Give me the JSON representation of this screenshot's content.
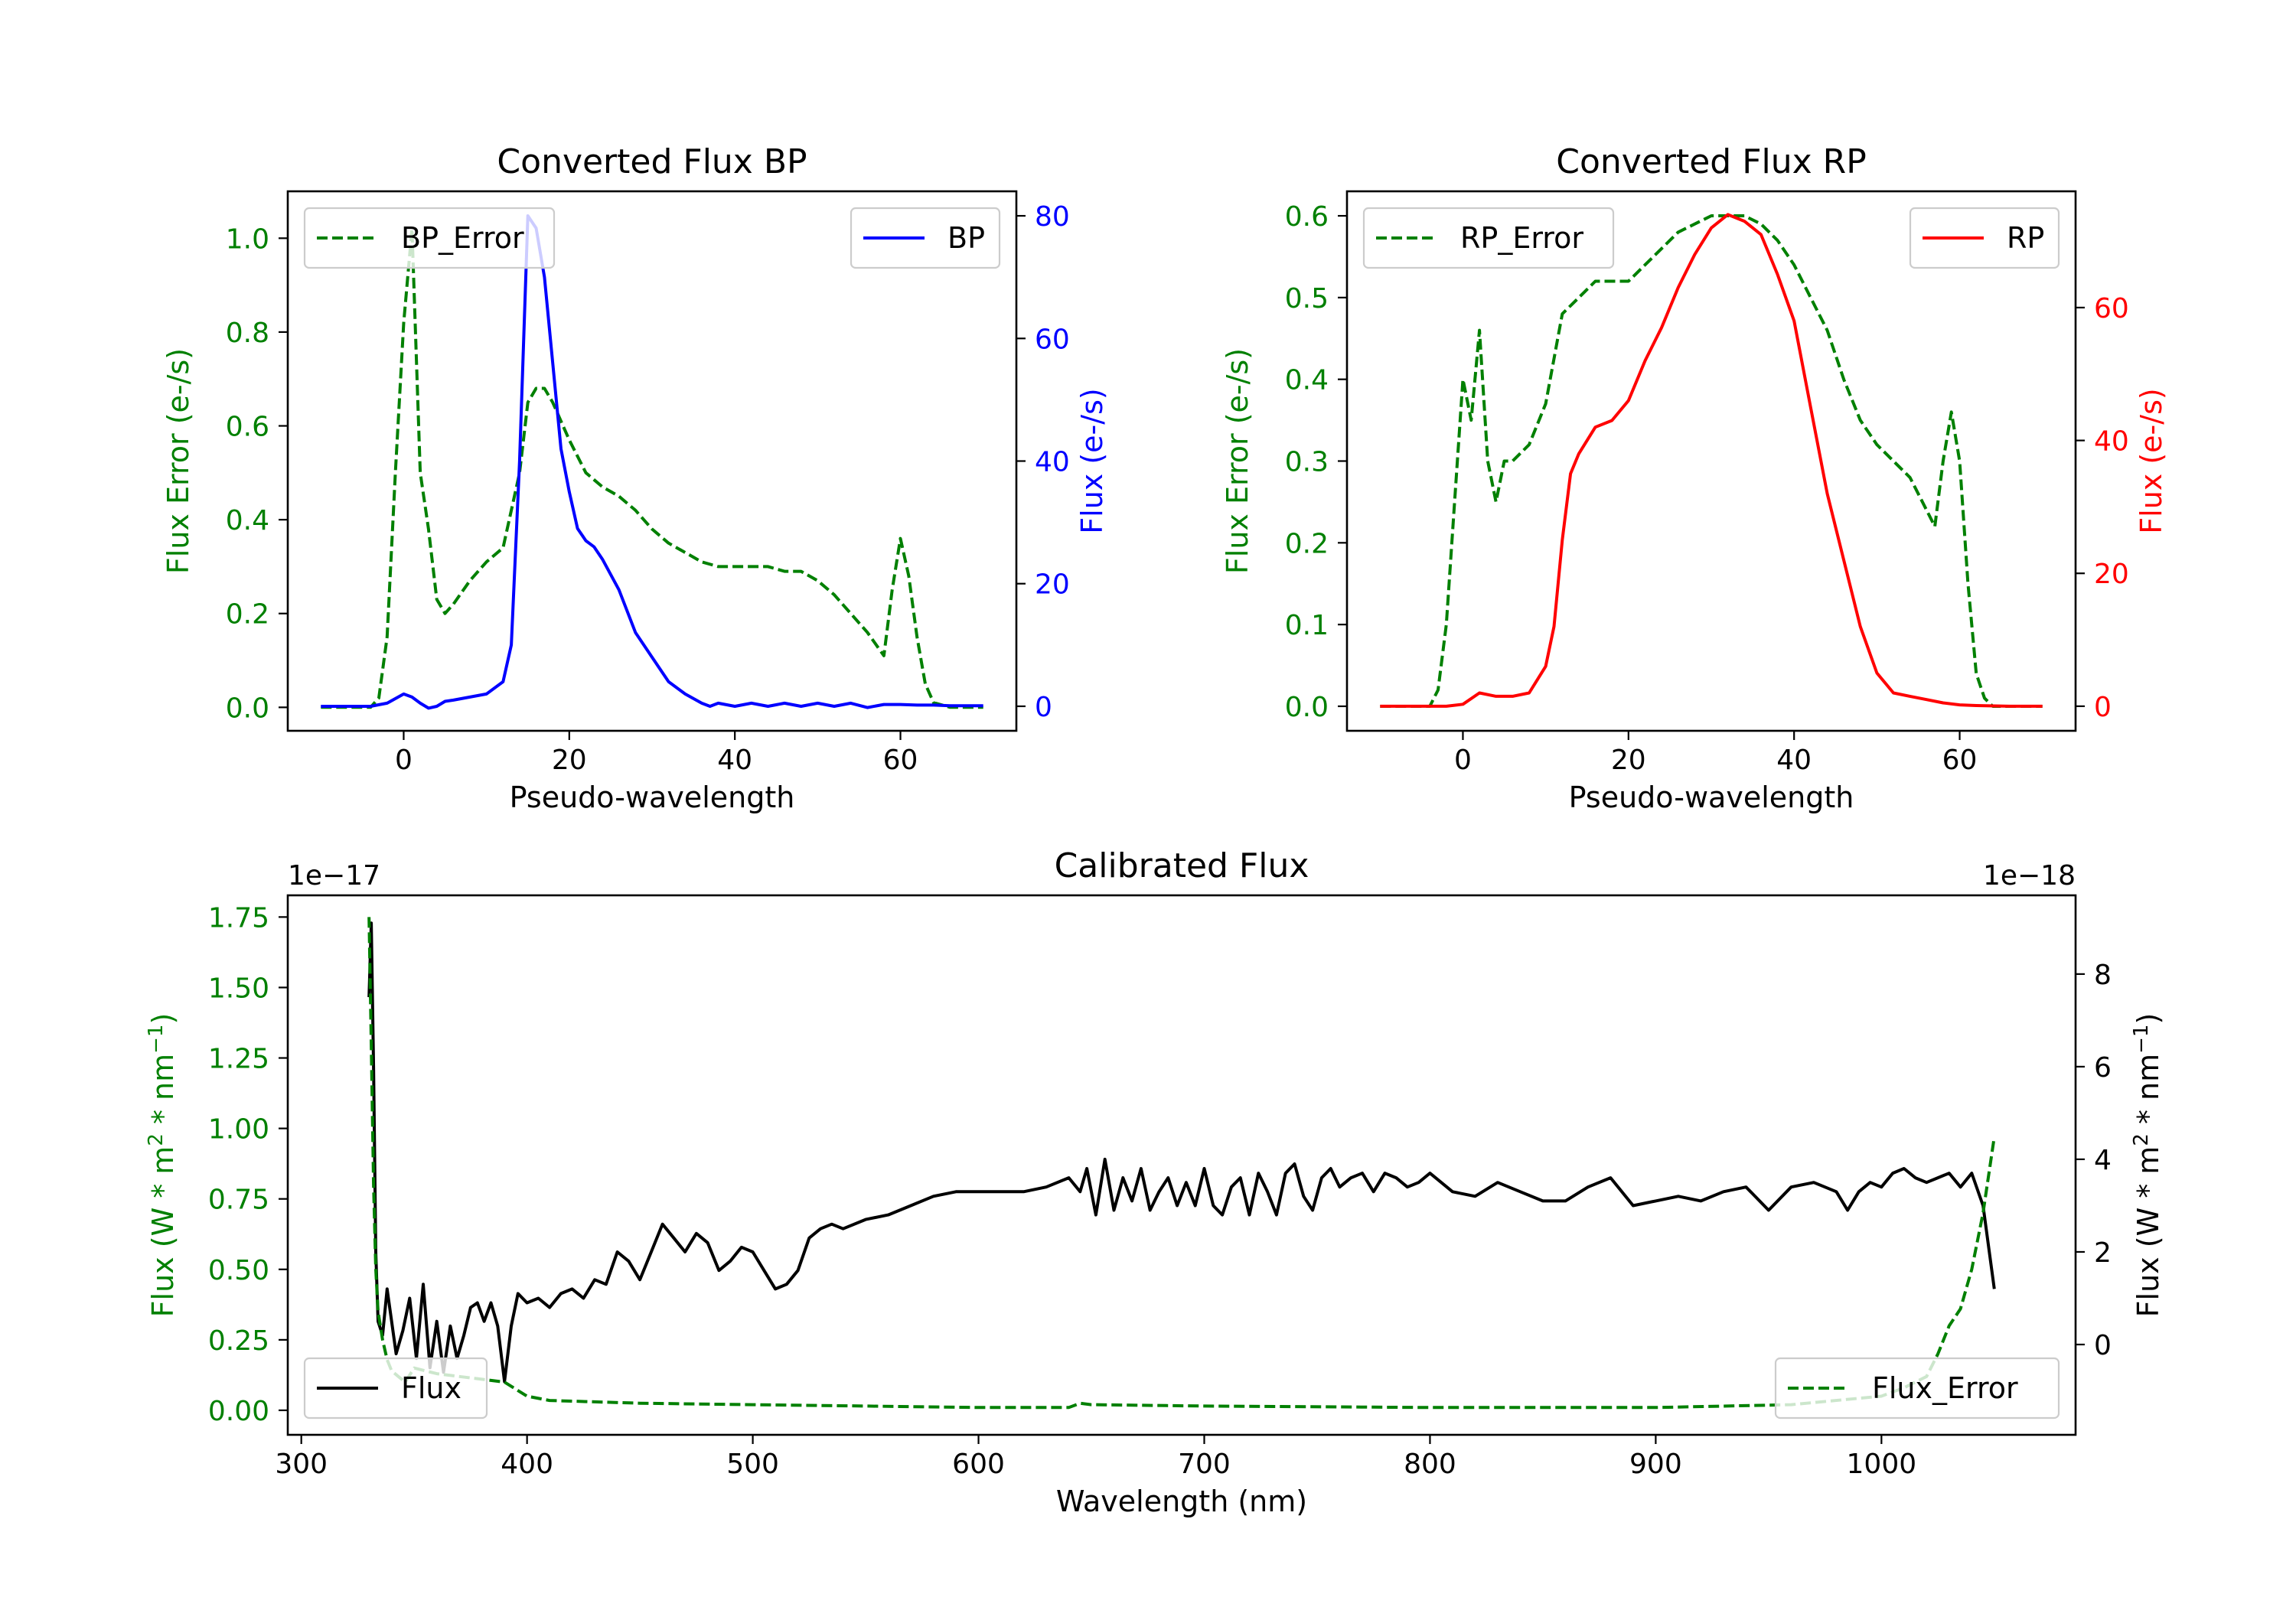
{
  "colors": {
    "green": "#008000",
    "blue": "#0000ff",
    "red": "#ff0000",
    "black": "#000000"
  },
  "chart_data": [
    {
      "type": "line",
      "title": "Converted Flux BP",
      "xlabel": "Pseudo-wavelength",
      "ylabel_left": "Flux Error (e-/s)",
      "ylabel_right": "Flux (e-/s)",
      "xlim": [
        -14,
        74
      ],
      "ylim_left": [
        -0.05,
        1.1
      ],
      "ylim_right": [
        -4.0,
        84.0
      ],
      "xticks": [
        0,
        20,
        40,
        60
      ],
      "yticks_left": [
        0.0,
        0.2,
        0.4,
        0.6,
        0.8,
        1.0
      ],
      "yticks_right": [
        0,
        20,
        40,
        60,
        80
      ],
      "left_tick_color": "#008000",
      "right_tick_color": "#0000ff",
      "series": [
        {
          "name": "BP_Error",
          "axis": "left",
          "style": "dashed",
          "color": "#008000",
          "legend": "top-left",
          "x": [
            -10,
            -4,
            -3,
            -2,
            -1,
            0,
            1,
            2,
            3,
            4,
            5,
            6,
            8,
            10,
            12,
            14,
            15,
            16,
            17,
            18,
            20,
            22,
            24,
            26,
            28,
            30,
            32,
            34,
            36,
            38,
            40,
            42,
            44,
            46,
            48,
            50,
            52,
            54,
            56,
            58,
            59,
            60,
            61,
            62,
            63,
            64,
            66,
            70
          ],
          "y": [
            0.0,
            0.0,
            0.02,
            0.15,
            0.5,
            0.82,
            1.02,
            0.5,
            0.38,
            0.23,
            0.2,
            0.22,
            0.27,
            0.31,
            0.34,
            0.5,
            0.65,
            0.68,
            0.68,
            0.65,
            0.57,
            0.5,
            0.47,
            0.45,
            0.42,
            0.38,
            0.35,
            0.33,
            0.31,
            0.3,
            0.3,
            0.3,
            0.3,
            0.29,
            0.29,
            0.27,
            0.24,
            0.2,
            0.16,
            0.11,
            0.25,
            0.36,
            0.28,
            0.15,
            0.05,
            0.01,
            0.0,
            0.0
          ]
        },
        {
          "name": "BP",
          "axis": "right",
          "style": "solid",
          "color": "#0000ff",
          "legend": "top-right",
          "x": [
            -10,
            -4,
            -2,
            0,
            1,
            2,
            3,
            4,
            5,
            6,
            8,
            10,
            12,
            13,
            14,
            15,
            16,
            17,
            18,
            19,
            20,
            21,
            22,
            23,
            24,
            26,
            28,
            30,
            32,
            34,
            36,
            37,
            38,
            40,
            42,
            44,
            46,
            48,
            50,
            52,
            54,
            56,
            58,
            60,
            62,
            64,
            66,
            70
          ],
          "y": [
            0,
            0,
            0.5,
            2,
            1.5,
            0.5,
            -0.3,
            0,
            0.8,
            1,
            1.5,
            2,
            4,
            10,
            40,
            80,
            78,
            70,
            56,
            42,
            35,
            29,
            27,
            26,
            24,
            19,
            12,
            8,
            4,
            2,
            0.5,
            0,
            0.5,
            0,
            0.5,
            0,
            0.5,
            0,
            0.5,
            0,
            0.5,
            -0.2,
            0.3,
            0.3,
            0.2,
            0.2,
            0.1,
            0.1
          ]
        }
      ]
    },
    {
      "type": "line",
      "title": "Converted Flux RP",
      "xlabel": "Pseudo-wavelength",
      "ylabel_left": "Flux Error (e-/s)",
      "ylabel_right": "Flux (e-/s)",
      "xlim": [
        -14,
        74
      ],
      "ylim_left": [
        -0.03,
        0.63
      ],
      "ylim_right": [
        -3.7,
        77.5
      ],
      "xticks": [
        0,
        20,
        40,
        60
      ],
      "yticks_left": [
        0.0,
        0.1,
        0.2,
        0.3,
        0.4,
        0.5,
        0.6
      ],
      "yticks_right": [
        0,
        20,
        40,
        60
      ],
      "left_tick_color": "#008000",
      "right_tick_color": "#ff0000",
      "series": [
        {
          "name": "RP_Error",
          "axis": "left",
          "style": "dashed",
          "color": "#008000",
          "legend": "top-left",
          "x": [
            -10,
            -4,
            -3,
            -2,
            -1,
            0,
            1,
            2,
            3,
            4,
            5,
            6,
            8,
            10,
            12,
            14,
            16,
            18,
            20,
            22,
            24,
            26,
            28,
            30,
            32,
            34,
            36,
            38,
            40,
            42,
            44,
            46,
            48,
            50,
            52,
            54,
            56,
            57,
            58,
            59,
            60,
            61,
            62,
            63,
            64,
            66,
            70
          ],
          "y": [
            0.0,
            0.0,
            0.02,
            0.1,
            0.25,
            0.4,
            0.35,
            0.46,
            0.3,
            0.25,
            0.3,
            0.3,
            0.32,
            0.37,
            0.48,
            0.5,
            0.52,
            0.52,
            0.52,
            0.54,
            0.56,
            0.58,
            0.59,
            0.6,
            0.6,
            0.6,
            0.59,
            0.57,
            0.54,
            0.5,
            0.46,
            0.4,
            0.35,
            0.32,
            0.3,
            0.28,
            0.24,
            0.22,
            0.3,
            0.36,
            0.3,
            0.15,
            0.04,
            0.01,
            0.0,
            0.0,
            0.0
          ]
        },
        {
          "name": "RP",
          "axis": "right",
          "style": "solid",
          "color": "#ff0000",
          "legend": "top-right",
          "x": [
            -10,
            -2,
            0,
            2,
            4,
            6,
            8,
            10,
            11,
            12,
            13,
            14,
            16,
            18,
            20,
            22,
            24,
            26,
            28,
            30,
            32,
            34,
            36,
            38,
            40,
            42,
            44,
            46,
            48,
            50,
            52,
            54,
            56,
            58,
            60,
            62,
            66,
            70
          ],
          "y": [
            0,
            0,
            0.3,
            2,
            1.5,
            1.5,
            2,
            6,
            12,
            25,
            35,
            38,
            42,
            43,
            46,
            52,
            57,
            63,
            68,
            72,
            74,
            73,
            71,
            65,
            58,
            45,
            32,
            22,
            12,
            5,
            2,
            1.5,
            1,
            0.5,
            0.2,
            0.1,
            0,
            0
          ]
        }
      ]
    },
    {
      "type": "line",
      "title": "Calibrated Flux",
      "xlabel": "Wavelength (nm)",
      "ylabel_left": "Flux (W * m^2 * nm^-1)",
      "ylabel_right": "Flux (W * m^2 * nm^-1)",
      "left_offset": "1e−17",
      "right_offset": "1e−18",
      "xlim": [
        294,
        1086
      ],
      "ylim_left": [
        -0.087,
        1.827
      ],
      "ylim_right": [
        -1.95,
        9.7
      ],
      "xticks": [
        300,
        400,
        500,
        600,
        700,
        800,
        900,
        1000
      ],
      "yticks_left": [
        0.0,
        0.25,
        0.5,
        0.75,
        1.0,
        1.25,
        1.5,
        1.75
      ],
      "yticks_left_labels": [
        "0.00",
        "0.25",
        "0.50",
        "0.75",
        "1.00",
        "1.25",
        "1.50",
        "1.75"
      ],
      "yticks_right": [
        0,
        2,
        4,
        6,
        8
      ],
      "left_tick_color": "#008000",
      "right_tick_color": "#000000",
      "series": [
        {
          "name": "Flux",
          "axis": "right",
          "style": "solid",
          "color": "#000000",
          "legend": "bottom-left",
          "x": [
            330,
            331,
            332,
            333,
            334,
            336,
            338,
            340,
            342,
            345,
            348,
            351,
            354,
            357,
            360,
            363,
            366,
            369,
            372,
            375,
            378,
            381,
            384,
            387,
            390,
            393,
            396,
            400,
            405,
            410,
            415,
            420,
            425,
            430,
            435,
            440,
            445,
            450,
            455,
            460,
            465,
            470,
            475,
            480,
            485,
            490,
            495,
            500,
            505,
            510,
            515,
            520,
            525,
            530,
            535,
            540,
            550,
            560,
            570,
            580,
            590,
            600,
            610,
            620,
            630,
            640,
            645,
            648,
            652,
            656,
            660,
            664,
            668,
            672,
            676,
            680,
            684,
            688,
            692,
            696,
            700,
            704,
            708,
            712,
            716,
            720,
            724,
            728,
            732,
            736,
            740,
            744,
            748,
            752,
            756,
            760,
            765,
            770,
            775,
            780,
            785,
            790,
            795,
            800,
            810,
            820,
            830,
            840,
            850,
            860,
            870,
            880,
            890,
            900,
            910,
            920,
            930,
            940,
            950,
            960,
            970,
            980,
            985,
            990,
            995,
            1000,
            1005,
            1010,
            1015,
            1020,
            1025,
            1030,
            1035,
            1040,
            1045,
            1050
          ],
          "y": [
            7.5,
            9.1,
            6,
            2,
            0.5,
            0.2,
            1.2,
            0.5,
            -0.2,
            0.3,
            1.0,
            -0.3,
            1.3,
            -0.5,
            0.5,
            -0.6,
            0.4,
            -0.3,
            0.2,
            0.8,
            0.9,
            0.5,
            0.9,
            0.4,
            -0.8,
            0.4,
            1.1,
            0.9,
            1.0,
            0.8,
            1.1,
            1.2,
            1.0,
            1.4,
            1.3,
            2.0,
            1.8,
            1.4,
            2.0,
            2.6,
            2.3,
            2.0,
            2.4,
            2.2,
            1.6,
            1.8,
            2.1,
            2.0,
            1.6,
            1.2,
            1.3,
            1.6,
            2.3,
            2.5,
            2.6,
            2.5,
            2.7,
            2.8,
            3.0,
            3.2,
            3.3,
            3.3,
            3.3,
            3.3,
            3.4,
            3.6,
            3.3,
            3.8,
            2.8,
            4.0,
            2.9,
            3.6,
            3.1,
            3.8,
            2.9,
            3.3,
            3.6,
            3.0,
            3.5,
            3.0,
            3.8,
            3.0,
            2.8,
            3.4,
            3.6,
            2.8,
            3.7,
            3.3,
            2.8,
            3.7,
            3.9,
            3.2,
            2.9,
            3.6,
            3.8,
            3.4,
            3.6,
            3.7,
            3.3,
            3.7,
            3.6,
            3.4,
            3.5,
            3.7,
            3.3,
            3.2,
            3.5,
            3.3,
            3.1,
            3.1,
            3.4,
            3.6,
            3.0,
            3.1,
            3.2,
            3.1,
            3.3,
            3.4,
            2.9,
            3.4,
            3.5,
            3.3,
            2.9,
            3.3,
            3.5,
            3.4,
            3.7,
            3.8,
            3.6,
            3.5,
            3.6,
            3.7,
            3.4,
            3.7,
            3.0,
            1.2
          ]
        },
        {
          "name": "Flux_Error",
          "axis": "left",
          "style": "dashed",
          "color": "#008000",
          "legend": "bottom-right",
          "x": [
            330,
            331,
            332,
            333,
            334,
            336,
            338,
            340,
            343,
            346,
            350,
            355,
            360,
            370,
            380,
            390,
            400,
            410,
            430,
            450,
            500,
            550,
            600,
            640,
            645,
            650,
            700,
            800,
            900,
            960,
            1000,
            1010,
            1020,
            1025,
            1030,
            1035,
            1040,
            1045,
            1050
          ],
          "y": [
            1.75,
            1.3,
            0.8,
            0.5,
            0.35,
            0.25,
            0.18,
            0.14,
            0.12,
            0.1,
            0.15,
            0.14,
            0.13,
            0.12,
            0.11,
            0.1,
            0.05,
            0.035,
            0.03,
            0.025,
            0.02,
            0.015,
            0.01,
            0.01,
            0.025,
            0.02,
            0.015,
            0.01,
            0.01,
            0.02,
            0.05,
            0.08,
            0.12,
            0.2,
            0.3,
            0.36,
            0.5,
            0.7,
            0.97
          ]
        }
      ]
    }
  ]
}
